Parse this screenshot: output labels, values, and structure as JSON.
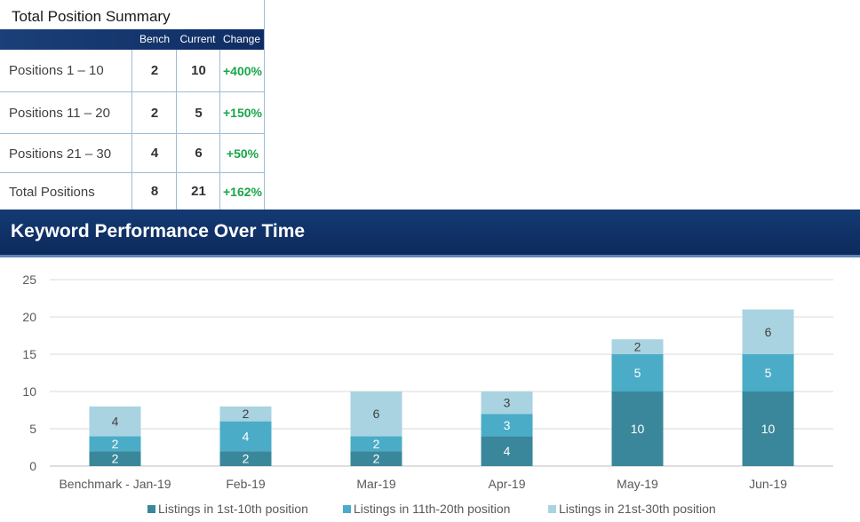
{
  "summary": {
    "title": "Total Position Summary",
    "headers": [
      "Bench",
      "Current",
      "Change"
    ],
    "rows": [
      {
        "label": "Positions 1 – 10",
        "bench": "2",
        "current": "10",
        "change": "+400%"
      },
      {
        "label": "Positions 11 – 20",
        "bench": "2",
        "current": "5",
        "change": "+150%"
      },
      {
        "label": "Positions 21 – 30",
        "bench": "4",
        "current": "6",
        "change": "+50%"
      },
      {
        "label": "Total Positions",
        "bench": "8",
        "current": "21",
        "change": "+162%"
      }
    ]
  },
  "banner": {
    "title": "Keyword Performance Over Time"
  },
  "colors": {
    "series1": "#3a879b",
    "series2": "#4aacc6",
    "series3": "#a9d3e1",
    "header": "#143a74",
    "positive": "#1aa64a"
  },
  "chart_data": {
    "type": "bar",
    "stacked": true,
    "categories": [
      "Benchmark - Jan-19",
      "Feb-19",
      "Mar-19",
      "Apr-19",
      "May-19",
      "Jun-19"
    ],
    "series": [
      {
        "name": "Listings in 1st-10th position",
        "values": [
          2,
          2,
          2,
          4,
          10,
          10
        ],
        "color": "#3a879b"
      },
      {
        "name": "Listings in 11th-20th position",
        "values": [
          2,
          4,
          2,
          3,
          5,
          5
        ],
        "color": "#4aacc6"
      },
      {
        "name": "Listings in 21st-30th position",
        "values": [
          4,
          2,
          6,
          3,
          2,
          6
        ],
        "color": "#a9d3e1"
      }
    ],
    "ylim": [
      0,
      25
    ],
    "yticks": [
      0,
      5,
      10,
      15,
      20,
      25
    ],
    "grid": true,
    "legend": "bottom"
  }
}
